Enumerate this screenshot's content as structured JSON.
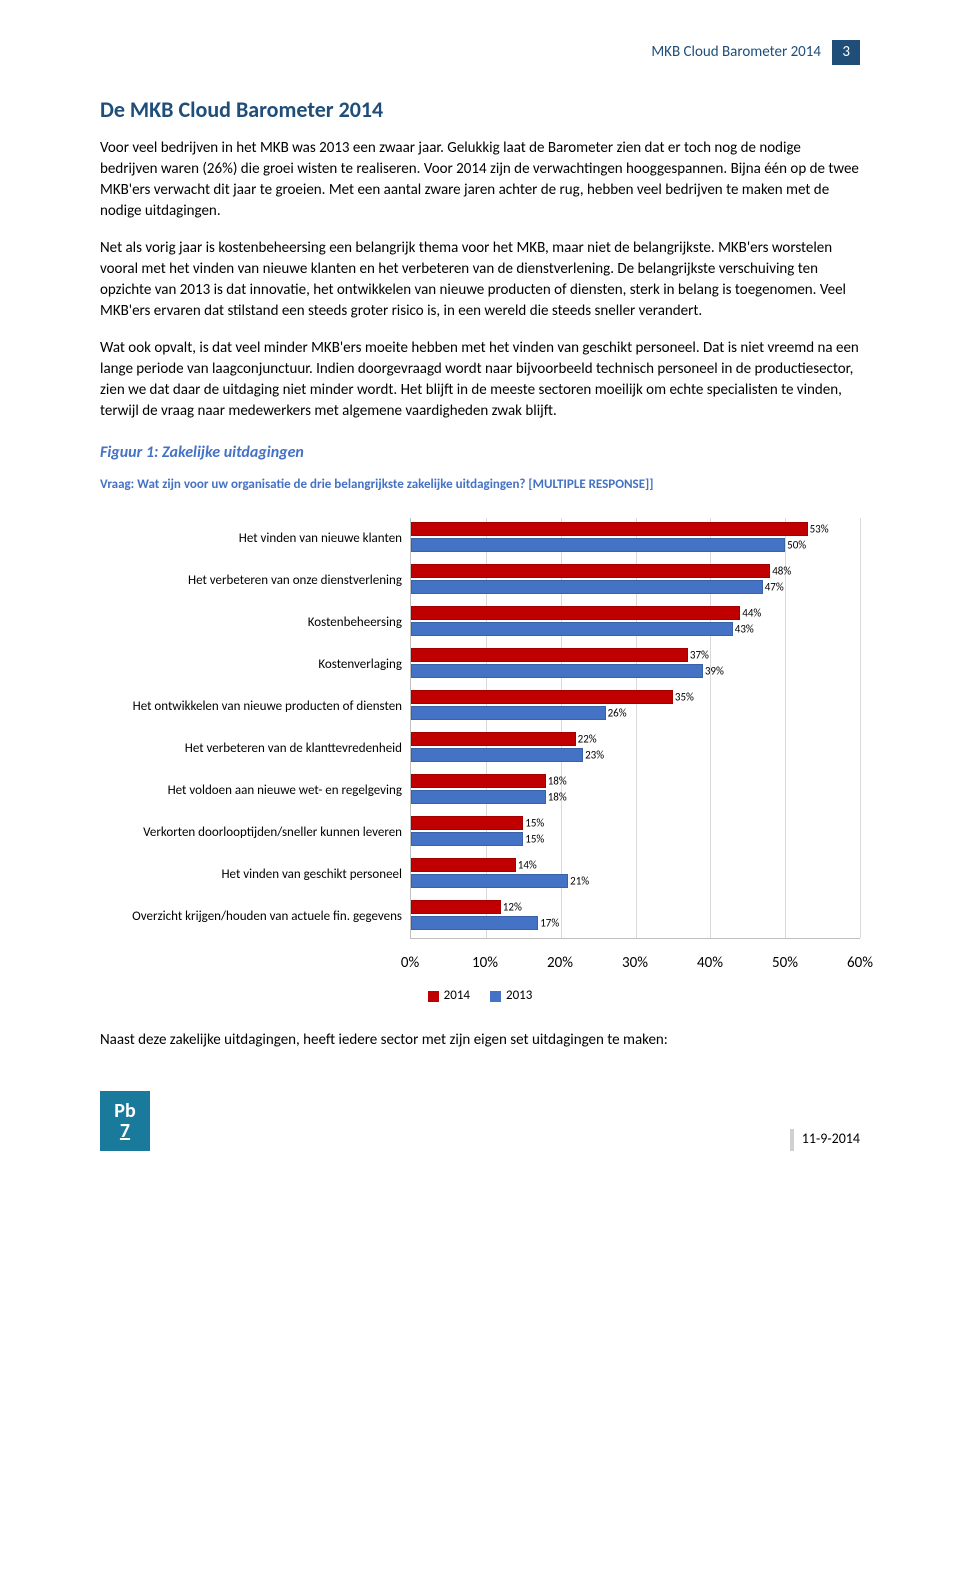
{
  "header": {
    "title": "MKB Cloud Barometer 2014",
    "pageNumber": "3"
  },
  "h1": "De MKB Cloud Barometer 2014",
  "paragraphs": [
    "Voor veel bedrijven in het MKB was 2013 een zwaar jaar. Gelukkig laat de Barometer zien dat er toch nog de nodige bedrijven waren (26%) die groei wisten te realiseren. Voor 2014 zijn de verwachtingen hooggespannen. Bijna één op de twee MKB'ers verwacht dit jaar te groeien. Met een aantal zware jaren achter de rug, hebben veel bedrijven te maken met de nodige uitdagingen.",
    "Net als vorig jaar is kostenbeheersing een belangrijk thema voor het MKB, maar niet de belangrijkste. MKB'ers worstelen vooral met het vinden van nieuwe klanten en het verbeteren van de dienstverlening. De belangrijkste verschuiving ten opzichte van 2013 is dat innovatie, het ontwikkelen van nieuwe producten of diensten, sterk in belang is toegenomen. Veel MKB'ers ervaren dat stilstand een steeds groter risico is, in een wereld die steeds sneller verandert.",
    "Wat ook opvalt, is dat veel minder MKB'ers moeite hebben met het vinden van geschikt personeel. Dat is niet vreemd na een lange periode van laagconjunctuur. Indien doorgevraagd wordt naar bijvoorbeeld technisch personeel in de productiesector, zien we dat daar de uitdaging niet minder wordt. Het blijft in de meeste sectoren moeilijk om echte specialisten te vinden, terwijl de vraag naar medewerkers met algemene vaardigheden zwak blijft."
  ],
  "figureTitle": "Figuur 1: Zakelijke uitdagingen",
  "question": "Vraag: Wat zijn voor uw organisatie de drie belangrijkste zakelijke uitdagingen? [MULTIPLE RESPONSE]]",
  "chart": {
    "type": "grouped-horizontal-bar",
    "xmax": 60,
    "xticks": [
      0,
      10,
      20,
      30,
      40,
      50,
      60
    ],
    "color2014": "#c00000",
    "color2013": "#4472c4",
    "gridColor": "#d9d9d9",
    "categories": [
      {
        "label": "Het vinden van nieuwe klanten",
        "v2014": 53,
        "v2013": 50
      },
      {
        "label": "Het verbeteren van onze dienstverlening",
        "v2014": 48,
        "v2013": 47
      },
      {
        "label": "Kostenbeheersing",
        "v2014": 44,
        "v2013": 43
      },
      {
        "label": "Kostenverlaging",
        "v2014": 37,
        "v2013": 39
      },
      {
        "label": "Het ontwikkelen van nieuwe producten of diensten",
        "v2014": 35,
        "v2013": 26
      },
      {
        "label": "Het verbeteren van de klanttevredenheid",
        "v2014": 22,
        "v2013": 23
      },
      {
        "label": "Het voldoen aan nieuwe wet- en regelgeving",
        "v2014": 18,
        "v2013": 18
      },
      {
        "label": "Verkorten doorlooptijden/sneller kunnen leveren",
        "v2014": 15,
        "v2013": 15
      },
      {
        "label": "Het vinden van geschikt personeel",
        "v2014": 14,
        "v2013": 21
      },
      {
        "label": "Overzicht krijgen/houden van actuele fin. gegevens",
        "v2014": 12,
        "v2013": 17
      }
    ],
    "legend": {
      "l2014": "2014",
      "l2013": "2013"
    }
  },
  "closingPara": "Naast deze zakelijke uitdagingen, heeft iedere sector met zijn eigen set uitdagingen te maken:",
  "footer": {
    "logoTop": "Pb",
    "logoBottom": "7",
    "date": "11-9-2014"
  }
}
